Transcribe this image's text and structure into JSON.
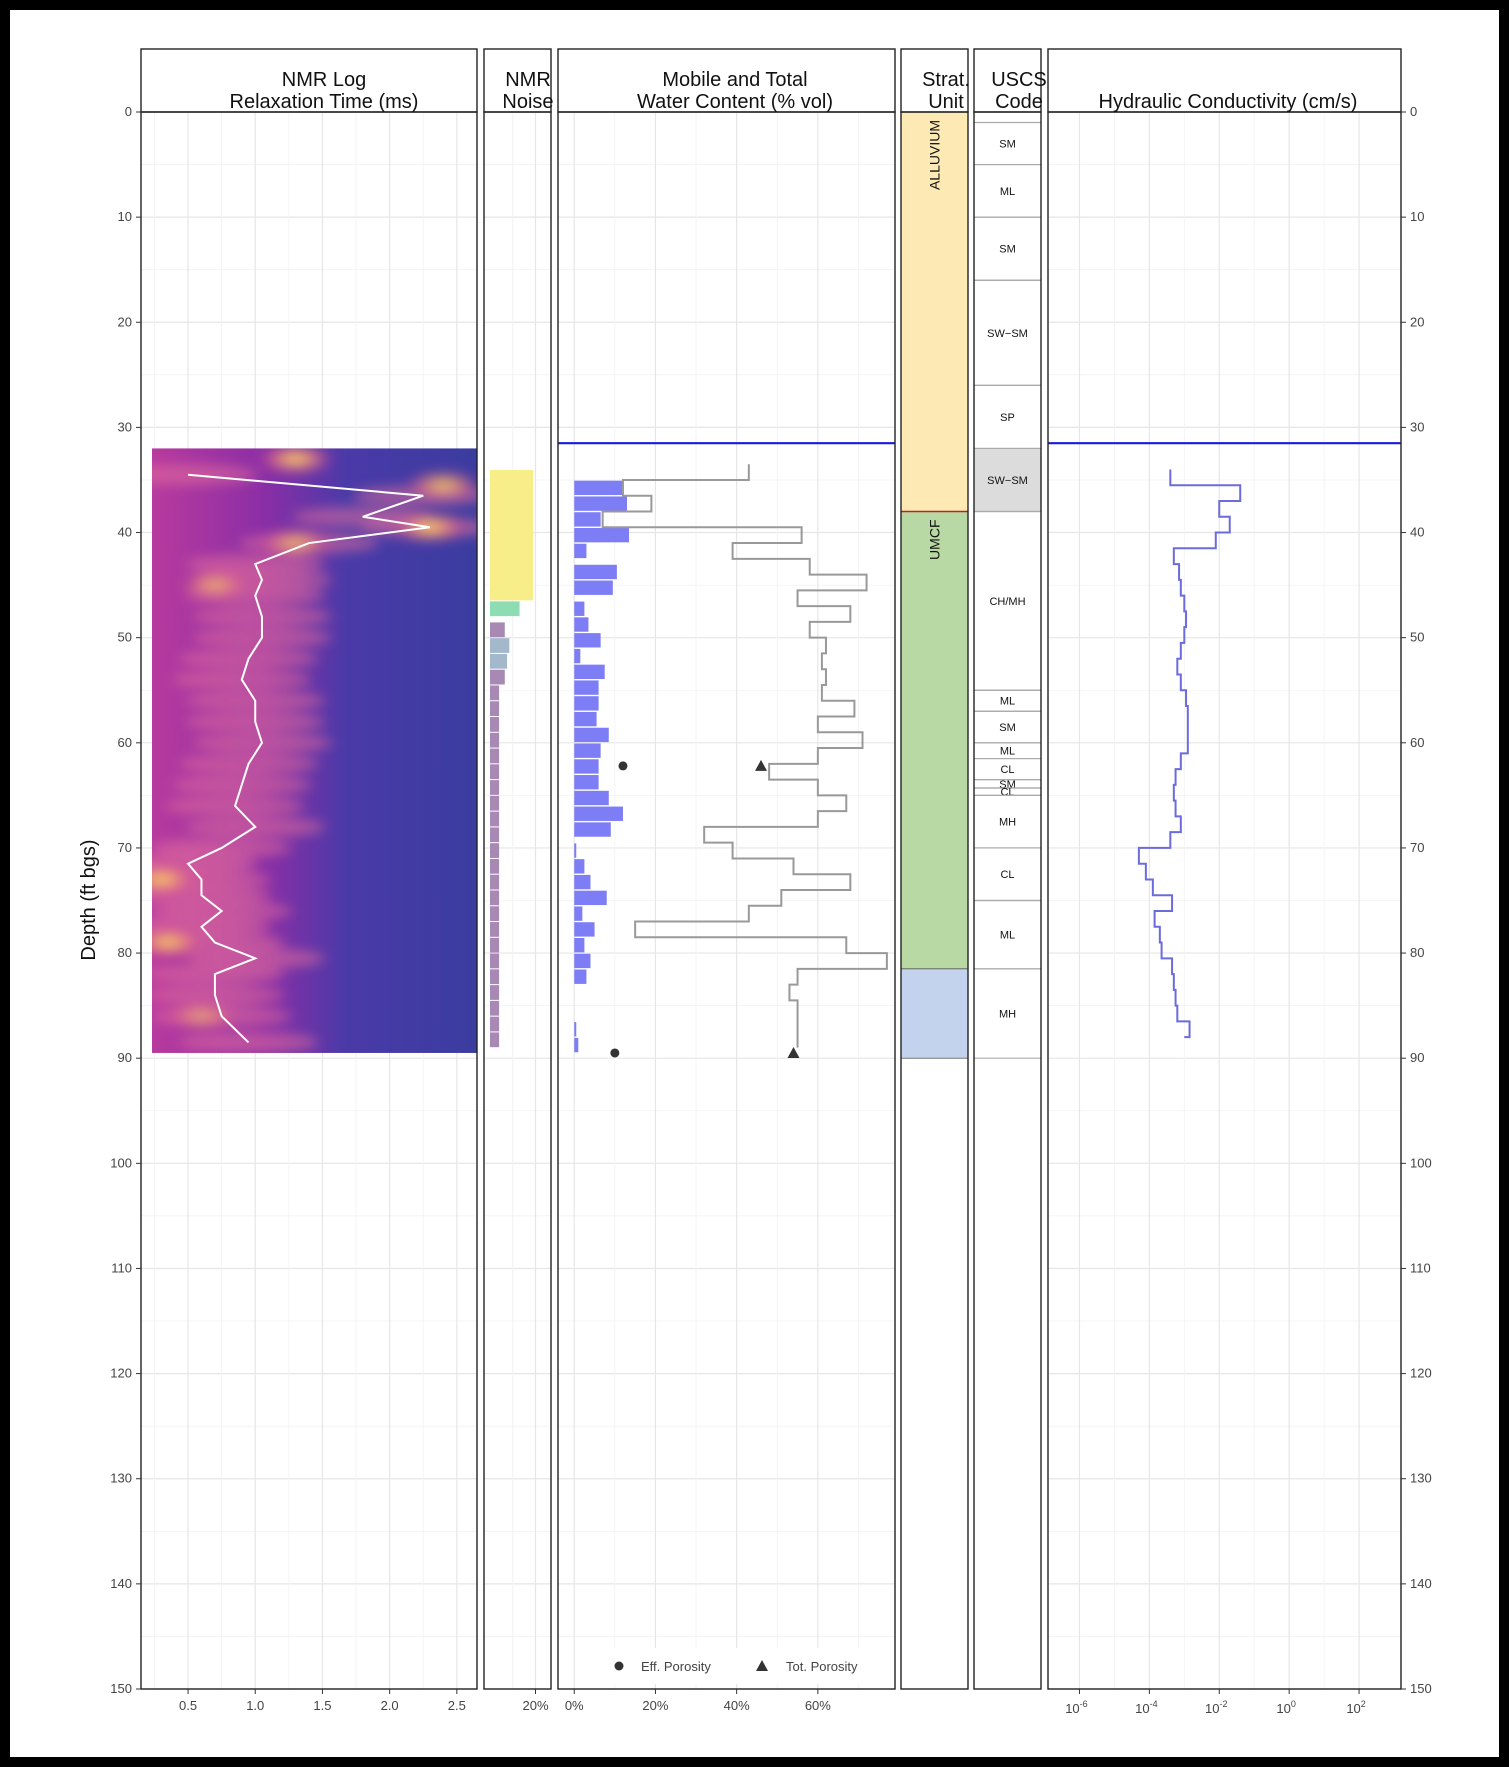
{
  "y_axis": {
    "label": "Depth (ft bgs)",
    "min": 0,
    "max": 150,
    "ticks": [
      0,
      10,
      20,
      30,
      40,
      50,
      60,
      70,
      80,
      90,
      100,
      110,
      120,
      130,
      140,
      150
    ]
  },
  "water_table_depth": 31.5,
  "panel_titles": {
    "nmr_log": [
      "NMR Log",
      "Relaxation Time (ms)"
    ],
    "nmr_noise": [
      "NMR",
      "Noise"
    ],
    "water_content": [
      "Mobile and Total",
      "Water Content (% vol)"
    ],
    "strat": [
      "Strat.",
      "Unit"
    ],
    "uscs": [
      "USCS",
      "Code"
    ],
    "k": [
      "Hydraulic Conductivity (cm/s)"
    ]
  },
  "x_ticks": {
    "nmr_log": [
      "0.5",
      "1.0",
      "1.5",
      "2.0",
      "2.5"
    ],
    "nmr_noise": [
      "20%"
    ],
    "water_content": [
      "0%",
      "20%",
      "40%",
      "60%"
    ],
    "k": [
      [
        "10",
        "-6"
      ],
      [
        "10",
        "-4"
      ],
      [
        "10",
        "-2"
      ],
      [
        "10",
        "0"
      ],
      [
        "10",
        "2"
      ]
    ]
  },
  "legend": {
    "eff_porosity": "Eff. Porosity",
    "tot_porosity": "Tot. Porosity"
  },
  "colors": {
    "water_table": "#1a1adc",
    "mobile_bar": "#7d7df5",
    "total_line": "#999999",
    "k_line": "#6b6bdd",
    "alluvium": "#fde9b3",
    "umcf": "#b8d9a3",
    "lower_unit": "#c3d3ee",
    "noise_yellow": "#f7ee8a",
    "noise_green": "#8ddcb3",
    "noise_blue": "#a4b8cc",
    "noise_purple": "#a889b3"
  },
  "chart_data": [
    {
      "type": "heatmap",
      "title": "NMR Log Relaxation Time (ms)",
      "xlim": [
        0.15,
        2.65
      ],
      "depth_range": [
        32,
        89.5
      ],
      "mean_log_line": {
        "depth": [
          34.5,
          36.5,
          38.5,
          39.5,
          41,
          43,
          44.5,
          46,
          48,
          50,
          52,
          54,
          56,
          58,
          60,
          62,
          64,
          66,
          68,
          70,
          71.5,
          73,
          74.5,
          76,
          77.5,
          79,
          80.5,
          82,
          84,
          86,
          88.5
        ],
        "value": [
          0.5,
          2.25,
          1.8,
          2.3,
          1.4,
          1.0,
          1.05,
          1.0,
          1.05,
          1.05,
          0.95,
          0.9,
          1.0,
          1.0,
          1.05,
          0.95,
          0.9,
          0.85,
          1.0,
          0.75,
          0.5,
          0.6,
          0.6,
          0.75,
          0.6,
          0.7,
          1.0,
          0.7,
          0.7,
          0.75,
          0.95
        ]
      },
      "hot_spots": [
        {
          "depth": 33,
          "value": 1.3,
          "intensity": 1.0
        },
        {
          "depth": 35.5,
          "value": 2.4,
          "intensity": 0.9
        },
        {
          "depth": 39.5,
          "value": 2.3,
          "intensity": 1.0
        },
        {
          "depth": 41,
          "value": 1.3,
          "intensity": 0.8
        },
        {
          "depth": 73,
          "value": 0.3,
          "intensity": 1.0
        },
        {
          "depth": 79,
          "value": 0.35,
          "intensity": 0.95
        },
        {
          "depth": 45,
          "value": 0.7,
          "intensity": 0.7
        },
        {
          "depth": 86,
          "value": 0.6,
          "intensity": 0.6
        }
      ]
    },
    {
      "type": "bar",
      "title": "NMR Noise",
      "xlim": [
        0,
        0.2
      ],
      "bars": [
        {
          "d0": 34,
          "d1": 46.5,
          "value": 0.19,
          "color": "yellow"
        },
        {
          "d0": 46.5,
          "d1": 48,
          "value": 0.13,
          "color": "green"
        },
        {
          "d0": 48.5,
          "d1": 50,
          "value": 0.065,
          "color": "purple"
        },
        {
          "d0": 50,
          "d1": 51.5,
          "value": 0.085,
          "color": "blue"
        },
        {
          "d0": 51.5,
          "d1": 53,
          "value": 0.075,
          "color": "blue"
        },
        {
          "d0": 53,
          "d1": 54.5,
          "value": 0.065,
          "color": "purple"
        },
        {
          "d0": 54.5,
          "d1": 56,
          "value": 0.04,
          "color": "purple"
        },
        {
          "d0": 56,
          "d1": 57.5,
          "value": 0.04,
          "color": "purple"
        },
        {
          "d0": 57.5,
          "d1": 59,
          "value": 0.04,
          "color": "purple"
        },
        {
          "d0": 59,
          "d1": 60.5,
          "value": 0.04,
          "color": "purple"
        },
        {
          "d0": 60.5,
          "d1": 62,
          "value": 0.04,
          "color": "purple"
        },
        {
          "d0": 62,
          "d1": 63.5,
          "value": 0.04,
          "color": "purple"
        },
        {
          "d0": 63.5,
          "d1": 65,
          "value": 0.04,
          "color": "purple"
        },
        {
          "d0": 65,
          "d1": 66.5,
          "value": 0.04,
          "color": "purple"
        },
        {
          "d0": 66.5,
          "d1": 68,
          "value": 0.04,
          "color": "purple"
        },
        {
          "d0": 68,
          "d1": 69.5,
          "value": 0.04,
          "color": "purple"
        },
        {
          "d0": 69.5,
          "d1": 71,
          "value": 0.04,
          "color": "purple"
        },
        {
          "d0": 71,
          "d1": 72.5,
          "value": 0.04,
          "color": "purple"
        },
        {
          "d0": 72.5,
          "d1": 74,
          "value": 0.04,
          "color": "purple"
        },
        {
          "d0": 74,
          "d1": 75.5,
          "value": 0.04,
          "color": "purple"
        },
        {
          "d0": 75.5,
          "d1": 77,
          "value": 0.04,
          "color": "purple"
        },
        {
          "d0": 77,
          "d1": 78.5,
          "value": 0.04,
          "color": "purple"
        },
        {
          "d0": 78.5,
          "d1": 80,
          "value": 0.04,
          "color": "purple"
        },
        {
          "d0": 80,
          "d1": 81.5,
          "value": 0.04,
          "color": "purple"
        },
        {
          "d0": 81.5,
          "d1": 83,
          "value": 0.04,
          "color": "purple"
        },
        {
          "d0": 83,
          "d1": 84.5,
          "value": 0.04,
          "color": "purple"
        },
        {
          "d0": 84.5,
          "d1": 86,
          "value": 0.04,
          "color": "purple"
        },
        {
          "d0": 86,
          "d1": 87.5,
          "value": 0.04,
          "color": "purple"
        },
        {
          "d0": 87.5,
          "d1": 89,
          "value": 0.04,
          "color": "purple"
        }
      ]
    },
    {
      "type": "bar",
      "title": "Mobile and Total Water Content (% vol)",
      "xlim": [
        -0.04,
        0.79
      ],
      "mobile_water": [
        {
          "d0": 35,
          "d1": 36.5,
          "value": 0.12
        },
        {
          "d0": 36.5,
          "d1": 38,
          "value": 0.13
        },
        {
          "d0": 38,
          "d1": 39.5,
          "value": 0.065
        },
        {
          "d0": 39.5,
          "d1": 41,
          "value": 0.135
        },
        {
          "d0": 41,
          "d1": 42.5,
          "value": 0.03
        },
        {
          "d0": 43,
          "d1": 44.5,
          "value": 0.105
        },
        {
          "d0": 44.5,
          "d1": 46,
          "value": 0.095
        },
        {
          "d0": 46.5,
          "d1": 48,
          "value": 0.025
        },
        {
          "d0": 48,
          "d1": 49.5,
          "value": 0.035
        },
        {
          "d0": 49.5,
          "d1": 51,
          "value": 0.065
        },
        {
          "d0": 51,
          "d1": 52.5,
          "value": 0.015
        },
        {
          "d0": 52.5,
          "d1": 54,
          "value": 0.075
        },
        {
          "d0": 54,
          "d1": 55.5,
          "value": 0.06
        },
        {
          "d0": 55.5,
          "d1": 57,
          "value": 0.06
        },
        {
          "d0": 57,
          "d1": 58.5,
          "value": 0.055
        },
        {
          "d0": 58.5,
          "d1": 60,
          "value": 0.085
        },
        {
          "d0": 60,
          "d1": 61.5,
          "value": 0.065
        },
        {
          "d0": 61.5,
          "d1": 63,
          "value": 0.06
        },
        {
          "d0": 63,
          "d1": 64.5,
          "value": 0.06
        },
        {
          "d0": 64.5,
          "d1": 66,
          "value": 0.085
        },
        {
          "d0": 66,
          "d1": 67.5,
          "value": 0.12
        },
        {
          "d0": 67.5,
          "d1": 69,
          "value": 0.09
        },
        {
          "d0": 69.5,
          "d1": 71,
          "value": 0.005
        },
        {
          "d0": 71,
          "d1": 72.5,
          "value": 0.025
        },
        {
          "d0": 72.5,
          "d1": 74,
          "value": 0.04
        },
        {
          "d0": 74,
          "d1": 75.5,
          "value": 0.08
        },
        {
          "d0": 75.5,
          "d1": 77,
          "value": 0.02
        },
        {
          "d0": 77,
          "d1": 78.5,
          "value": 0.05
        },
        {
          "d0": 78.5,
          "d1": 80,
          "value": 0.025
        },
        {
          "d0": 80,
          "d1": 81.5,
          "value": 0.04
        },
        {
          "d0": 81.5,
          "d1": 83,
          "value": 0.03
        },
        {
          "d0": 86.5,
          "d1": 88,
          "value": 0.005
        },
        {
          "d0": 88,
          "d1": 89.5,
          "value": 0.01
        }
      ],
      "total_water_step": {
        "depth": [
          33.5,
          35,
          36.5,
          38,
          39.5,
          41,
          42.5,
          44,
          45.5,
          47,
          48.5,
          50,
          51.5,
          53,
          54.5,
          56,
          57.5,
          59,
          60.5,
          62,
          63.5,
          65,
          66.5,
          68,
          69.5,
          71,
          72.5,
          74,
          75.5,
          77,
          78.5,
          80,
          81.5,
          83,
          84.5,
          86,
          87.5
        ],
        "value": [
          0.43,
          0.12,
          0.19,
          0.07,
          0.56,
          0.39,
          0.58,
          0.72,
          0.55,
          0.68,
          0.58,
          0.62,
          0.61,
          0.62,
          0.61,
          0.69,
          0.6,
          0.71,
          0.6,
          0.48,
          0.6,
          0.67,
          0.6,
          0.32,
          0.39,
          0.54,
          0.68,
          0.51,
          0.43,
          0.15,
          0.67,
          0.77,
          0.55,
          0.53,
          0.55,
          0.55,
          0.55
        ]
      },
      "eff_porosity": [
        {
          "depth": 62.2,
          "value": 0.12
        },
        {
          "depth": 89.5,
          "value": 0.1
        }
      ],
      "tot_porosity": [
        {
          "depth": 62.2,
          "value": 0.46
        },
        {
          "depth": 89.5,
          "value": 0.54
        }
      ]
    },
    {
      "type": "table",
      "title": "Strat. Unit",
      "units": [
        {
          "top": 0,
          "bottom": 38,
          "label": "ALLUVIUM",
          "color": "alluvium"
        },
        {
          "top": 38,
          "bottom": 81.5,
          "label": "UMCF",
          "color": "umcf"
        },
        {
          "top": 81.5,
          "bottom": 90,
          "label": "",
          "color": "lower_unit"
        }
      ]
    },
    {
      "type": "table",
      "title": "USCS Code",
      "intervals": [
        {
          "top": 1,
          "bottom": 5,
          "label": "SM"
        },
        {
          "top": 5,
          "bottom": 10,
          "label": "ML"
        },
        {
          "top": 10,
          "bottom": 16,
          "label": "SM"
        },
        {
          "top": 16,
          "bottom": 26,
          "label": "SW−SM"
        },
        {
          "top": 26,
          "bottom": 32,
          "label": "SP"
        },
        {
          "top": 32,
          "bottom": 38,
          "label": "SW−SM",
          "shade": true
        },
        {
          "top": 38,
          "bottom": 55,
          "label": "CH/MH"
        },
        {
          "top": 55,
          "bottom": 57,
          "label": "ML"
        },
        {
          "top": 57,
          "bottom": 60,
          "label": "SM"
        },
        {
          "top": 60,
          "bottom": 61.5,
          "label": "ML"
        },
        {
          "top": 61.5,
          "bottom": 63.5,
          "label": "CL"
        },
        {
          "top": 63.5,
          "bottom": 64.3,
          "label": "SM"
        },
        {
          "top": 64.3,
          "bottom": 65,
          "label": "CL"
        },
        {
          "top": 65,
          "bottom": 70,
          "label": "MH"
        },
        {
          "top": 70,
          "bottom": 75,
          "label": "CL"
        },
        {
          "top": 75,
          "bottom": 81.5,
          "label": "ML"
        },
        {
          "top": 81.5,
          "bottom": 90,
          "label": "MH"
        }
      ]
    },
    {
      "type": "line",
      "title": "Hydraulic Conductivity (cm/s)",
      "xscale": "log10",
      "xlim_log10": [
        -6.9,
        3.2
      ],
      "k_step_log10": {
        "depth": [
          34,
          35.5,
          37,
          38.5,
          40,
          41.5,
          43,
          44.5,
          46,
          47.5,
          49,
          50.5,
          52,
          53.5,
          55,
          56.5,
          58,
          59.5,
          61,
          62.5,
          64,
          65.5,
          67,
          68.5,
          70,
          71.5,
          73,
          74.5,
          76,
          77.5,
          79,
          80.5,
          82,
          83.5,
          85,
          86.5
        ],
        "value": [
          -3.4,
          -1.4,
          -2.0,
          -1.7,
          -2.1,
          -3.3,
          -3.15,
          -3.1,
          -3.0,
          -2.95,
          -3.0,
          -3.1,
          -3.2,
          -3.1,
          -2.95,
          -2.9,
          -2.9,
          -2.9,
          -3.1,
          -3.25,
          -3.3,
          -3.25,
          -3.1,
          -3.4,
          -4.3,
          -4.1,
          -3.9,
          -3.35,
          -3.85,
          -3.7,
          -3.65,
          -3.35,
          -3.3,
          -3.25,
          -3.2,
          -2.85
        ]
      }
    }
  ]
}
